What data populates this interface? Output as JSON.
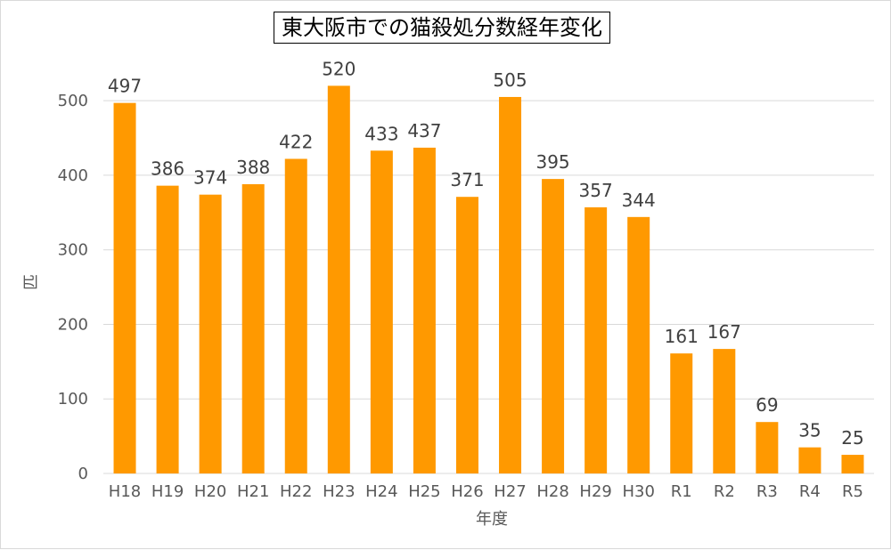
{
  "chart_data": {
    "type": "bar",
    "title": "東大阪市での猫殺処分数経年変化",
    "xlabel": "年度",
    "ylabel": "匹",
    "categories": [
      "H18",
      "H19",
      "H20",
      "H21",
      "H22",
      "H23",
      "H24",
      "H25",
      "H26",
      "H27",
      "H28",
      "H29",
      "H30",
      "R1",
      "R2",
      "R3",
      "R4",
      "R5"
    ],
    "values": [
      497,
      386,
      374,
      388,
      422,
      520,
      433,
      437,
      371,
      505,
      395,
      357,
      344,
      161,
      167,
      69,
      35,
      25
    ],
    "ylim": [
      0,
      500
    ],
    "yticks": [
      0,
      100,
      200,
      300,
      400,
      500
    ],
    "grid": true,
    "bar_color": "#ff9900",
    "data_labels": true
  }
}
